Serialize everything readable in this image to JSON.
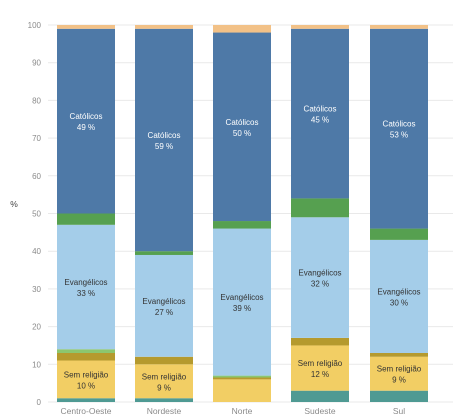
{
  "chart_data": {
    "type": "bar",
    "stacked": true,
    "ylabel": "%",
    "ylim": [
      0,
      100
    ],
    "yticks": [
      0,
      10,
      20,
      30,
      40,
      50,
      60,
      70,
      80,
      90,
      100
    ],
    "ytick_labels": [
      "0",
      "10",
      "20",
      "30",
      "40",
      "50",
      "60",
      "70",
      "80",
      "90",
      "100"
    ],
    "grid": true,
    "categories": [
      "Centro-Oeste",
      "Nordeste",
      "Norte",
      "Sudeste",
      "Sul"
    ],
    "series": [
      {
        "key": "teal",
        "color": "#4f9a93",
        "values": [
          1,
          1,
          0,
          3,
          3
        ]
      },
      {
        "key": "sem_religiao",
        "name": "Sem religião",
        "color": "#f2ce64",
        "values": [
          10,
          9,
          6,
          12,
          9
        ],
        "label_color": "#333333"
      },
      {
        "key": "olive",
        "color": "#b59a2e",
        "values": [
          2,
          2,
          0.5,
          2,
          1
        ],
        "label_color": "#333333"
      },
      {
        "key": "light_green",
        "color": "#8cc66e",
        "values": [
          1,
          0,
          0.5,
          0,
          0
        ]
      },
      {
        "key": "evangelicos",
        "name": "Evangélicos",
        "color": "#a4cde9",
        "values": [
          33,
          27,
          39,
          32,
          30
        ],
        "label_color": "#333333"
      },
      {
        "key": "green",
        "color": "#56a050",
        "values": [
          3,
          1,
          2,
          5,
          3
        ]
      },
      {
        "key": "catolicos",
        "name": "Católicos",
        "color": "#4e79a7",
        "values": [
          49,
          59,
          50,
          45,
          53
        ],
        "label_color": "#ffffff"
      },
      {
        "key": "beige",
        "color": "#f2c187",
        "values": [
          1,
          1,
          2,
          1,
          1
        ]
      }
    ],
    "segment_labels": [
      {
        "category": 0,
        "series": "catolicos",
        "name": "Católicos",
        "value": "49 %"
      },
      {
        "category": 0,
        "series": "evangelicos",
        "name": "Evangélicos",
        "value": "33 %"
      },
      {
        "category": 0,
        "series": "sem_religiao",
        "name": "Sem religião",
        "value": "10 %"
      },
      {
        "category": 1,
        "series": "catolicos",
        "name": "Católicos",
        "value": "59 %"
      },
      {
        "category": 1,
        "series": "evangelicos",
        "name": "Evangélicos",
        "value": "27 %"
      },
      {
        "category": 1,
        "series": "sem_religiao",
        "name": "Sem religião",
        "value": "9 %"
      },
      {
        "category": 2,
        "series": "catolicos",
        "name": "Católicos",
        "value": "50 %"
      },
      {
        "category": 2,
        "series": "evangelicos",
        "name": "Evangélicos",
        "value": "39 %"
      },
      {
        "category": 3,
        "series": "catolicos",
        "name": "Católicos",
        "value": "45 %"
      },
      {
        "category": 3,
        "series": "evangelicos",
        "name": "Evangélicos",
        "value": "32 %"
      },
      {
        "category": 3,
        "series": "sem_religiao",
        "name": "Sem religião",
        "value": "12 %"
      },
      {
        "category": 4,
        "series": "catolicos",
        "name": "Católicos",
        "value": "53 %"
      },
      {
        "category": 4,
        "series": "evangelicos",
        "name": "Evangélicos",
        "value": "30 %"
      },
      {
        "category": 4,
        "series": "sem_religiao",
        "name": "Sem religião",
        "value": "9 %"
      }
    ]
  }
}
